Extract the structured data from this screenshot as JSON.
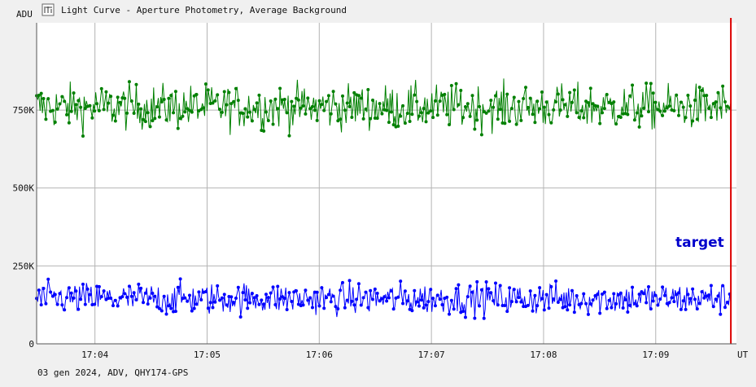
{
  "window": {
    "title": "Light Curve - Aperture Photometry, Average Background",
    "footer": "03 gen 2024, ADV, QHY174-GPS"
  },
  "chart_data": {
    "type": "line",
    "title": "Light Curve - Aperture Photometry, Average Background",
    "ylabel": "ADU",
    "xlabel": "UT",
    "yticks": [
      {
        "label": "750K",
        "value": 750000
      },
      {
        "label": "500K",
        "value": 500000
      },
      {
        "label": "250K",
        "value": 250000
      },
      {
        "label": "0",
        "value": 0
      }
    ],
    "xticks": [
      {
        "label": "17:04",
        "value": 1
      },
      {
        "label": "17:05",
        "value": 2
      },
      {
        "label": "17:06",
        "value": 3
      },
      {
        "label": "17:07",
        "value": 4
      },
      {
        "label": "17:08",
        "value": 5
      },
      {
        "label": "17:09",
        "value": 6
      }
    ],
    "xlim": [
      0.48,
      6.72
    ],
    "ylim": [
      0,
      1030000
    ],
    "grid": true,
    "annotation": {
      "text": "target",
      "color": "#0000cc"
    },
    "cursor": {
      "x": 6.67,
      "color": "#dd0000"
    },
    "series": [
      {
        "name": "",
        "color": "#008000",
        "mean": 760000,
        "stddev": 45000,
        "points": 600
      },
      {
        "name": "target",
        "color": "#0000ff",
        "mean": 145000,
        "stddev": 32000,
        "points": 600
      }
    ]
  }
}
